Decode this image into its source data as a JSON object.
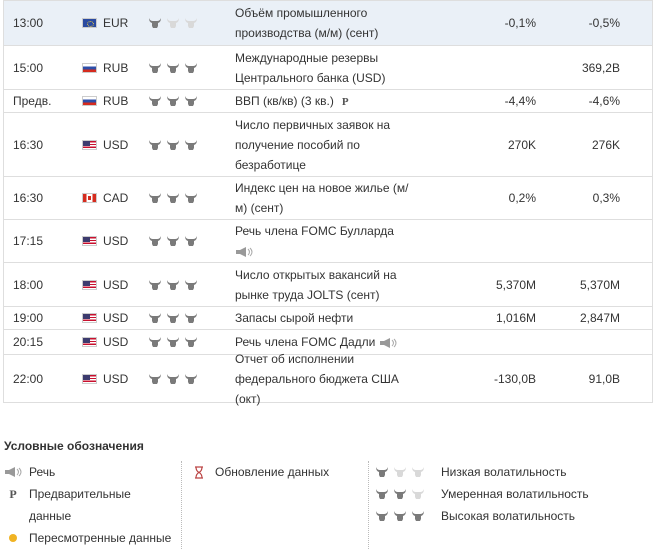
{
  "colors": {
    "highlight_row": "#eaf0f7",
    "border": "#dedede",
    "bull_active": "#7a7a7a",
    "bull_inactive": "#d9d9d9",
    "revised_dot": "#f0b323"
  },
  "rows": [
    {
      "time": "13:00",
      "flag": "eu",
      "currency": "EUR",
      "volatility": 1,
      "event_lines": [
        "Объём промышленного",
        "производства (м/м) (сент)"
      ],
      "actual": "-0,1%",
      "forecast": "-0,5%",
      "highlight": true,
      "icon": ""
    },
    {
      "time": "15:00",
      "flag": "ru",
      "currency": "RUB",
      "volatility": 3,
      "event_lines": [
        "Международные резервы",
        "Центрального банка (USD)"
      ],
      "actual": "",
      "forecast": "369,2B",
      "highlight": false,
      "icon": ""
    },
    {
      "time": "Предв.",
      "flag": "ru",
      "currency": "RUB",
      "volatility": 3,
      "event_lines": [
        "ВВП (кв/кв) (3 кв.)"
      ],
      "actual": "-4,4%",
      "forecast": "-4,6%",
      "highlight": false,
      "icon": "preliminary"
    },
    {
      "time": "16:30",
      "flag": "us",
      "currency": "USD",
      "volatility": 3,
      "event_lines": [
        "Число первичных заявок на",
        "получение пособий по",
        "безработице"
      ],
      "actual": "270K",
      "forecast": "276K",
      "highlight": false,
      "icon": ""
    },
    {
      "time": "16:30",
      "flag": "ca",
      "currency": "CAD",
      "volatility": 3,
      "event_lines": [
        "Индекс цен на новое жилье (м/",
        "м) (сент)"
      ],
      "actual": "0,2%",
      "forecast": "0,3%",
      "highlight": false,
      "icon": ""
    },
    {
      "time": "17:15",
      "flag": "us",
      "currency": "USD",
      "volatility": 3,
      "event_lines": [
        "Речь члена FOMC Булларда"
      ],
      "actual": "",
      "forecast": "",
      "highlight": false,
      "icon": "speech-below"
    },
    {
      "time": "18:00",
      "flag": "us",
      "currency": "USD",
      "volatility": 3,
      "event_lines": [
        "Число открытых вакансий на",
        "рынке труда JOLTS (сент)"
      ],
      "actual": "5,370M",
      "forecast": "5,370M",
      "highlight": false,
      "icon": ""
    },
    {
      "time": "19:00",
      "flag": "us",
      "currency": "USD",
      "volatility": 3,
      "event_lines": [
        "Запасы сырой нефти"
      ],
      "actual": "1,016M",
      "forecast": "2,847M",
      "highlight": false,
      "icon": ""
    },
    {
      "time": "20:15",
      "flag": "us",
      "currency": "USD",
      "volatility": 3,
      "event_lines": [
        "Речь члена FOMC Дадли"
      ],
      "actual": "",
      "forecast": "",
      "highlight": false,
      "icon": "speech"
    },
    {
      "time": "22:00",
      "flag": "us",
      "currency": "USD",
      "volatility": 3,
      "event_lines": [
        "Отчет об исполнении",
        "федерального бюджета США",
        "(окт)"
      ],
      "actual": "-130,0B",
      "forecast": "91,0B",
      "highlight": false,
      "icon": ""
    }
  ],
  "legend": {
    "title": "Условные обозначения",
    "speech": "Речь",
    "preliminary_line1": "Предварительные",
    "preliminary_line2": "данные",
    "revised": "Пересмотренные данные",
    "update": "Обновление данных",
    "low": "Низкая волатильность",
    "medium": "Умеренная волатильность",
    "high": "Высокая волатильность"
  }
}
